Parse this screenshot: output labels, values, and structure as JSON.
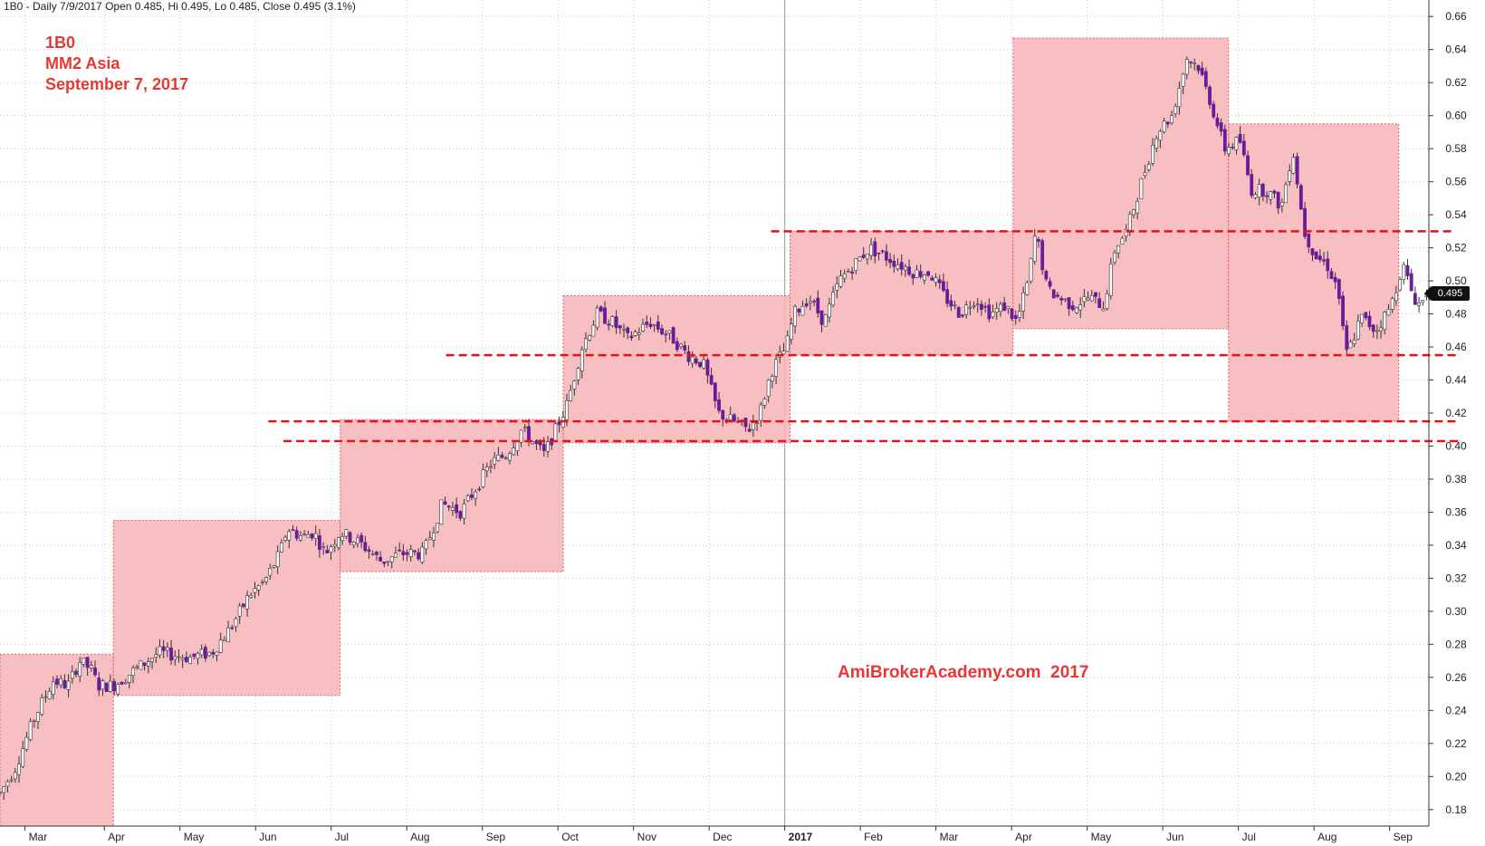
{
  "header": {
    "info": "1B0 - Daily 7/9/2017 Open 0.485, Hi 0.495, Lo 0.485, Close 0.495 (3.1%)"
  },
  "labels": {
    "symbol": "1B0",
    "company": "MM2 Asia",
    "date": "September 7, 2017",
    "watermark": "AmiBrokerAcademy.com  2017"
  },
  "last_price": "0.495",
  "colors": {
    "box_fill": "#f7b4b8",
    "box_border": "#e06070",
    "support_line": "#e01515",
    "candle_up": "#ffffff",
    "candle_down": "#6a1b9a",
    "label_red": "#e53935",
    "grid": "#c8c8c8"
  },
  "chart_data": {
    "type": "candlestick",
    "title": "",
    "ylim": [
      0.17,
      0.67
    ],
    "y_ticks": [
      0.18,
      0.2,
      0.22,
      0.24,
      0.26,
      0.28,
      0.3,
      0.32,
      0.34,
      0.36,
      0.38,
      0.4,
      0.42,
      0.44,
      0.46,
      0.48,
      0.5,
      0.52,
      0.54,
      0.56,
      0.58,
      0.6,
      0.62,
      0.64,
      0.66
    ],
    "y_tick_labels": [
      "0.18",
      "0.20",
      "0.22",
      "0.24",
      "0.26",
      "0.28",
      "0.30",
      "0.32",
      "0.34",
      "0.36",
      "0.38",
      "0.40",
      "0.42",
      "0.44",
      "0.46",
      "0.48",
      "0.50",
      "0.52",
      "0.54",
      "0.56",
      "0.58",
      "0.60",
      "0.62",
      "0.64",
      "0.66"
    ],
    "x_range": [
      0,
      18.9
    ],
    "x_ticks": [
      {
        "x": 0.45,
        "label": "Mar",
        "bold": false
      },
      {
        "x": 1.5,
        "label": "Apr",
        "bold": false
      },
      {
        "x": 2.5,
        "label": "May",
        "bold": false
      },
      {
        "x": 3.5,
        "label": "Jun",
        "bold": false
      },
      {
        "x": 4.5,
        "label": "Jul",
        "bold": false
      },
      {
        "x": 5.5,
        "label": "Aug",
        "bold": false
      },
      {
        "x": 6.5,
        "label": "Sep",
        "bold": false
      },
      {
        "x": 7.5,
        "label": "Oct",
        "bold": false
      },
      {
        "x": 8.5,
        "label": "Nov",
        "bold": false
      },
      {
        "x": 9.5,
        "label": "Dec",
        "bold": false
      },
      {
        "x": 10.5,
        "label": "2017",
        "bold": true
      },
      {
        "x": 11.5,
        "label": "Feb",
        "bold": false
      },
      {
        "x": 12.5,
        "label": "Mar",
        "bold": false
      },
      {
        "x": 13.5,
        "label": "Apr",
        "bold": false
      },
      {
        "x": 14.5,
        "label": "May",
        "bold": false
      },
      {
        "x": 15.5,
        "label": "Jun",
        "bold": false
      },
      {
        "x": 16.5,
        "label": "Jul",
        "bold": false
      },
      {
        "x": 17.5,
        "label": "Aug",
        "bold": false
      },
      {
        "x": 18.5,
        "label": "Sep",
        "bold": false
      }
    ],
    "anchors": [
      [
        0.0,
        0.19
      ],
      [
        0.2,
        0.205
      ],
      [
        0.45,
        0.235
      ],
      [
        0.7,
        0.258
      ],
      [
        0.9,
        0.255
      ],
      [
        1.05,
        0.27
      ],
      [
        1.2,
        0.265
      ],
      [
        1.3,
        0.255
      ],
      [
        1.5,
        0.255
      ],
      [
        1.8,
        0.265
      ],
      [
        2.1,
        0.275
      ],
      [
        2.5,
        0.272
      ],
      [
        2.8,
        0.275
      ],
      [
        3.05,
        0.29
      ],
      [
        3.3,
        0.31
      ],
      [
        3.5,
        0.318
      ],
      [
        3.7,
        0.335
      ],
      [
        3.8,
        0.35
      ],
      [
        4.0,
        0.345
      ],
      [
        4.15,
        0.348
      ],
      [
        4.3,
        0.335
      ],
      [
        4.5,
        0.348
      ],
      [
        4.8,
        0.34
      ],
      [
        5.05,
        0.33
      ],
      [
        5.3,
        0.335
      ],
      [
        5.6,
        0.335
      ],
      [
        5.85,
        0.365
      ],
      [
        6.1,
        0.36
      ],
      [
        6.3,
        0.375
      ],
      [
        6.5,
        0.39
      ],
      [
        6.7,
        0.395
      ],
      [
        6.9,
        0.41
      ],
      [
        7.0,
        0.405
      ],
      [
        7.2,
        0.395
      ],
      [
        7.35,
        0.41
      ],
      [
        7.5,
        0.425
      ],
      [
        7.7,
        0.46
      ],
      [
        7.9,
        0.48
      ],
      [
        8.1,
        0.475
      ],
      [
        8.3,
        0.465
      ],
      [
        8.6,
        0.475
      ],
      [
        8.9,
        0.465
      ],
      [
        9.1,
        0.455
      ],
      [
        9.3,
        0.45
      ],
      [
        9.5,
        0.42
      ],
      [
        9.7,
        0.415
      ],
      [
        9.9,
        0.41
      ],
      [
        10.05,
        0.42
      ],
      [
        10.2,
        0.445
      ],
      [
        10.4,
        0.46
      ],
      [
        10.5,
        0.48
      ],
      [
        10.7,
        0.49
      ],
      [
        10.9,
        0.475
      ],
      [
        11.1,
        0.5
      ],
      [
        11.3,
        0.51
      ],
      [
        11.5,
        0.52
      ],
      [
        11.7,
        0.515
      ],
      [
        11.9,
        0.51
      ],
      [
        12.1,
        0.505
      ],
      [
        12.3,
        0.505
      ],
      [
        12.5,
        0.49
      ],
      [
        12.7,
        0.48
      ],
      [
        12.9,
        0.49
      ],
      [
        13.1,
        0.48
      ],
      [
        13.3,
        0.485
      ],
      [
        13.45,
        0.475
      ],
      [
        13.6,
        0.5
      ],
      [
        13.7,
        0.53
      ],
      [
        13.85,
        0.495
      ],
      [
        14.0,
        0.49
      ],
      [
        14.2,
        0.485
      ],
      [
        14.4,
        0.49
      ],
      [
        14.6,
        0.485
      ],
      [
        14.75,
        0.52
      ],
      [
        14.9,
        0.53
      ],
      [
        15.1,
        0.56
      ],
      [
        15.3,
        0.59
      ],
      [
        15.5,
        0.6
      ],
      [
        15.7,
        0.635
      ],
      [
        15.85,
        0.63
      ],
      [
        16.0,
        0.61
      ],
      [
        16.2,
        0.58
      ],
      [
        16.4,
        0.585
      ],
      [
        16.55,
        0.555
      ],
      [
        16.75,
        0.555
      ],
      [
        16.95,
        0.545
      ],
      [
        17.1,
        0.58
      ],
      [
        17.25,
        0.53
      ],
      [
        17.4,
        0.515
      ],
      [
        17.55,
        0.51
      ],
      [
        17.7,
        0.495
      ],
      [
        17.8,
        0.455
      ],
      [
        17.9,
        0.465
      ],
      [
        18.0,
        0.478
      ],
      [
        18.2,
        0.47
      ],
      [
        18.4,
        0.485
      ],
      [
        18.55,
        0.51
      ],
      [
        18.7,
        0.49
      ],
      [
        18.8,
        0.485
      ],
      [
        18.87,
        0.495
      ]
    ],
    "boxes": [
      {
        "x0": 0.0,
        "x1": 1.5,
        "y0": 0.17,
        "y1": 0.274
      },
      {
        "x0": 1.5,
        "x1": 4.5,
        "y0": 0.249,
        "y1": 0.355
      },
      {
        "x0": 4.5,
        "x1": 7.45,
        "y0": 0.324,
        "y1": 0.416
      },
      {
        "x0": 7.45,
        "x1": 10.45,
        "y0": 0.402,
        "y1": 0.491
      },
      {
        "x0": 10.45,
        "x1": 13.4,
        "y0": 0.455,
        "y1": 0.53
      },
      {
        "x0": 13.4,
        "x1": 16.25,
        "y0": 0.471,
        "y1": 0.647
      },
      {
        "x0": 16.25,
        "x1": 18.5,
        "y0": 0.415,
        "y1": 0.595
      }
    ],
    "support_lines": [
      {
        "x0": 10.2,
        "x1": 19.2,
        "y": 0.53
      },
      {
        "x0": 5.9,
        "x1": 19.3,
        "y": 0.455
      },
      {
        "x0": 3.55,
        "x1": 19.3,
        "y": 0.415
      },
      {
        "x0": 3.75,
        "x1": 19.3,
        "y": 0.403
      }
    ]
  }
}
